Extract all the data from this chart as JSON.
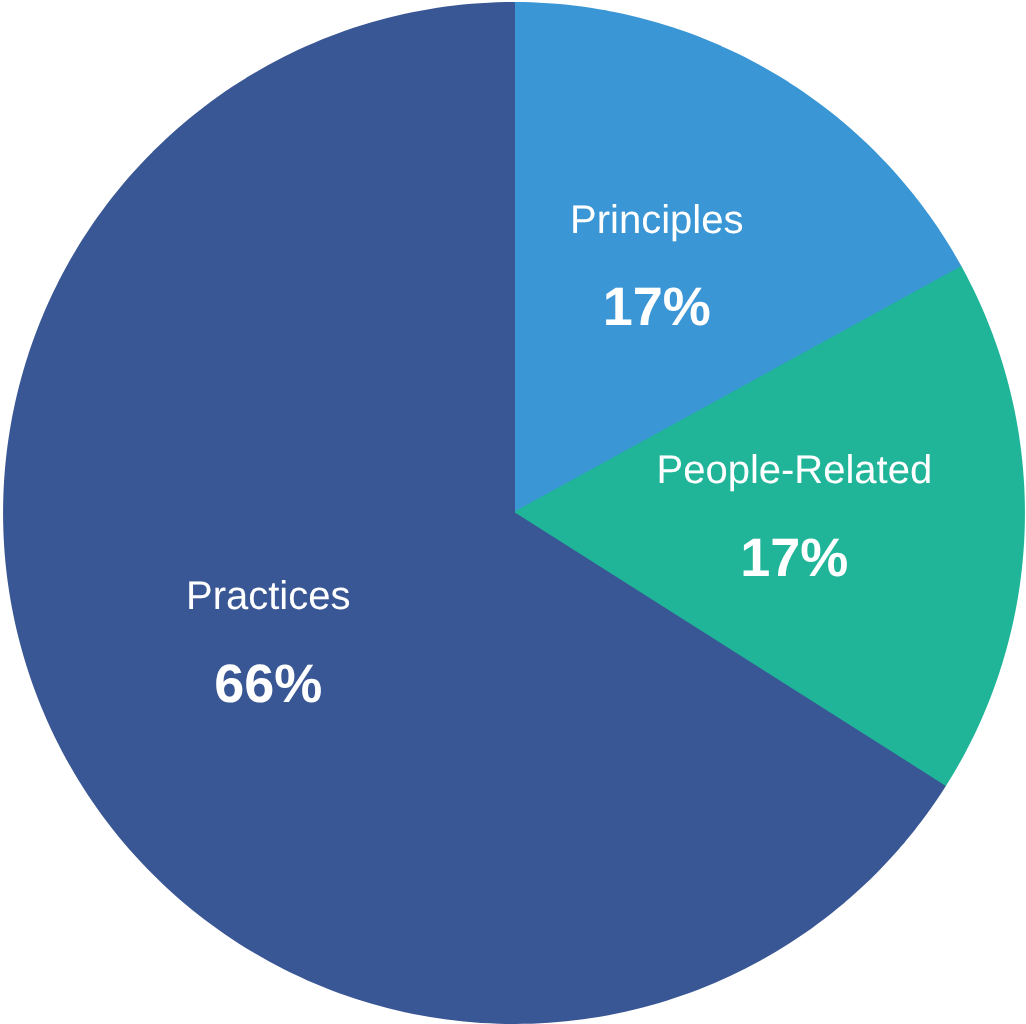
{
  "chart_data": {
    "type": "pie",
    "categories": [
      "Principles",
      "People-Related",
      "Practices"
    ],
    "values": [
      17,
      17,
      66
    ],
    "value_labels": [
      "17%",
      "17%",
      "66%"
    ],
    "colors": [
      "#3a96d5",
      "#20b598",
      "#3a5795"
    ]
  }
}
